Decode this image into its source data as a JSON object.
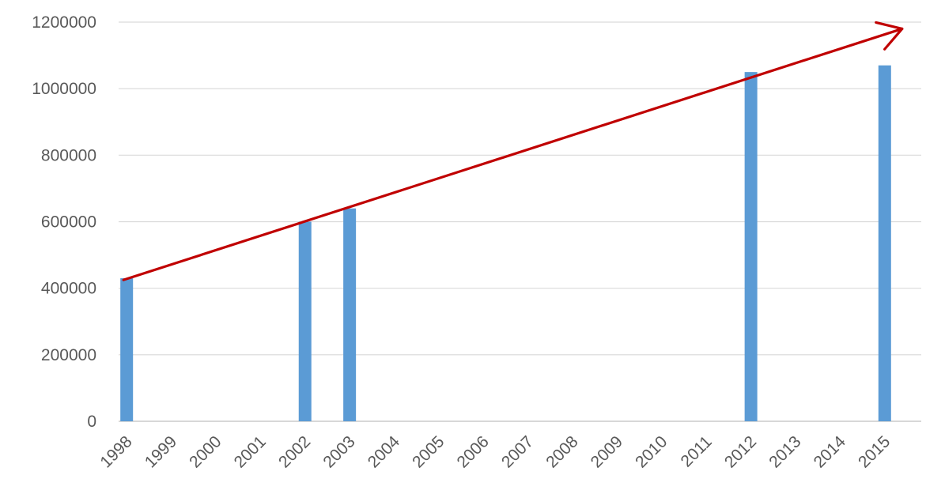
{
  "chart_data": {
    "type": "bar",
    "categories": [
      "1998",
      "1999",
      "2000",
      "2001",
      "2002",
      "2003",
      "2004",
      "2005",
      "2006",
      "2007",
      "2008",
      "2009",
      "2010",
      "2011",
      "2012",
      "2013",
      "2014",
      "2015"
    ],
    "series": [
      {
        "values": [
          430000,
          0,
          0,
          0,
          600000,
          640000,
          0,
          0,
          0,
          0,
          0,
          0,
          0,
          0,
          1050000,
          0,
          0,
          1070000
        ]
      }
    ],
    "ylim": [
      0,
      1200000
    ],
    "yticks": [
      0,
      200000,
      400000,
      600000,
      800000,
      1000000,
      1200000
    ],
    "grid": true,
    "legend": "none",
    "colors": {
      "bar": "#5b9bd5",
      "trend_arrow": "#c00000"
    },
    "annotations": [
      {
        "type": "trend-arrow",
        "from": {
          "x": "1998",
          "y": 425000
        },
        "to": {
          "x": "2015",
          "y": 1180000
        }
      }
    ]
  }
}
